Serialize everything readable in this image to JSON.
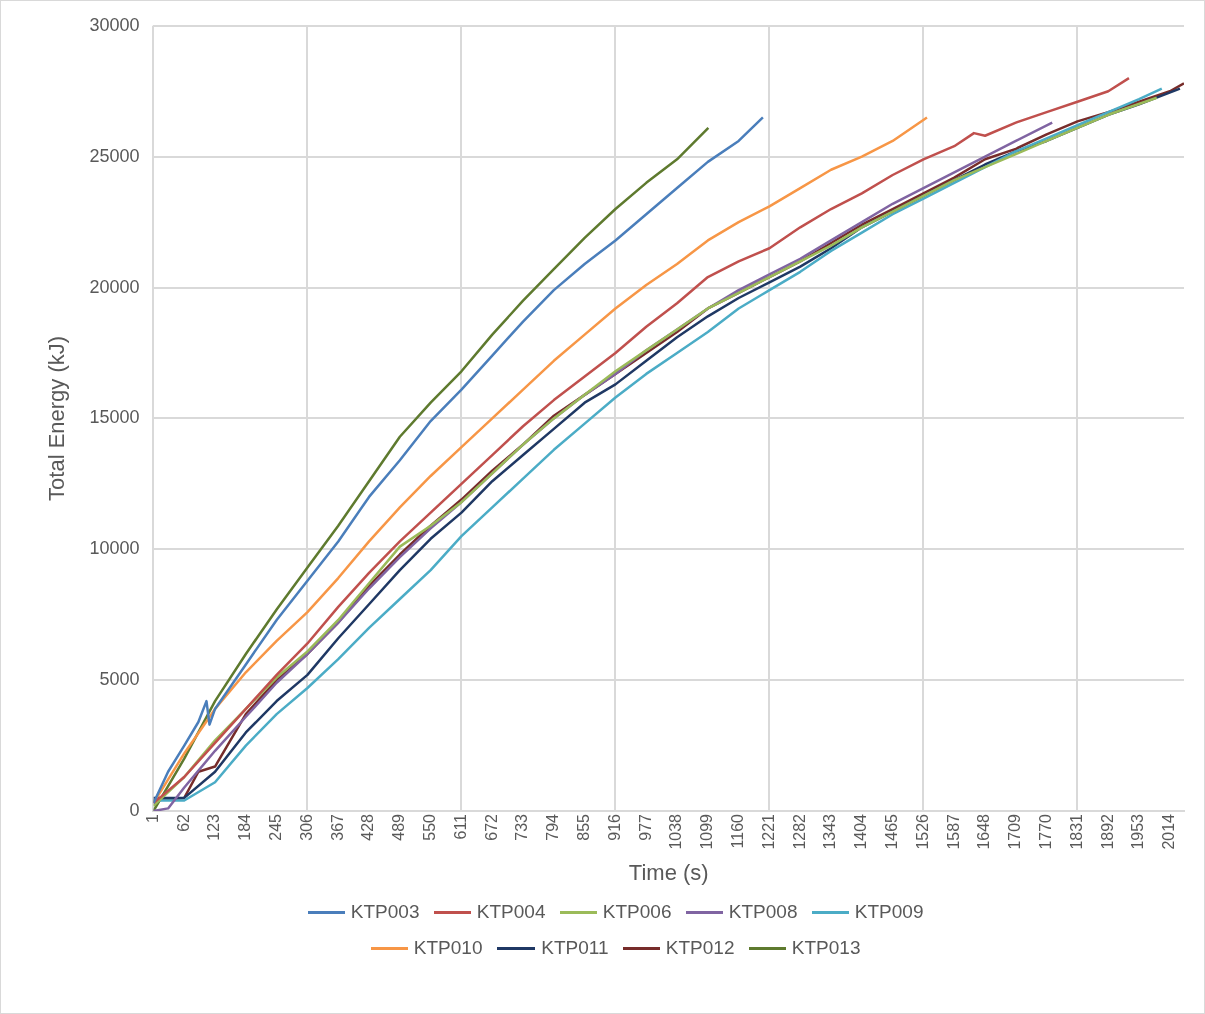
{
  "chart_data": {
    "type": "line",
    "xlabel": "Time (s)",
    "ylabel": "Total Energy (kJ)",
    "xlim": [
      1,
      2042
    ],
    "ylim": [
      0,
      30000
    ],
    "xticks": [
      1,
      62,
      123,
      184,
      245,
      306,
      367,
      428,
      489,
      550,
      611,
      672,
      733,
      794,
      855,
      916,
      977,
      1038,
      1099,
      1160,
      1221,
      1282,
      1343,
      1404,
      1465,
      1526,
      1587,
      1648,
      1709,
      1770,
      1831,
      1892,
      1953,
      2014
    ],
    "yticks": [
      0,
      5000,
      10000,
      15000,
      20000,
      25000,
      30000
    ],
    "grid": true,
    "legend": "bottom",
    "marker": "none",
    "line_style": "solid",
    "series": [
      {
        "name": "KTP003",
        "color": "#4a7ebb",
        "x": [
          1,
          30,
          62,
          90,
          106,
          112,
          123,
          184,
          245,
          306,
          367,
          428,
          489,
          550,
          611,
          672,
          733,
          794,
          855,
          916,
          977,
          1038,
          1099,
          1160,
          1208
        ],
        "values": [
          300,
          1500,
          2500,
          3400,
          4200,
          3300,
          3900,
          5600,
          7300,
          8800,
          10300,
          12000,
          13400,
          14900,
          16100,
          17400,
          18700,
          19900,
          20900,
          21800,
          22800,
          23800,
          24800,
          25600,
          26500
        ]
      },
      {
        "name": "KTP004",
        "color": "#c0504d",
        "x": [
          1,
          62,
          123,
          184,
          245,
          306,
          367,
          428,
          489,
          550,
          611,
          672,
          733,
          794,
          855,
          916,
          977,
          1038,
          1099,
          1160,
          1221,
          1282,
          1343,
          1404,
          1465,
          1526,
          1587,
          1626,
          1648,
          1709,
          1770,
          1831,
          1892,
          1933
        ],
        "values": [
          300,
          1300,
          2600,
          3900,
          5200,
          6400,
          7800,
          9100,
          10300,
          11400,
          12500,
          13600,
          14700,
          15700,
          16600,
          17500,
          18500,
          19400,
          20400,
          21000,
          21500,
          22300,
          23000,
          23600,
          24300,
          24900,
          25400,
          25900,
          25800,
          26300,
          26700,
          27100,
          27500,
          28000
        ]
      },
      {
        "name": "KTP006",
        "color": "#9bbb59",
        "x": [
          1,
          62,
          123,
          184,
          245,
          306,
          367,
          428,
          489,
          550,
          611,
          672,
          733,
          794,
          855,
          916,
          977,
          1038,
          1099,
          1160,
          1221,
          1282,
          1343,
          1404,
          1465,
          1526,
          1587,
          1648,
          1709,
          1770,
          1831,
          1892,
          1988
        ],
        "values": [
          200,
          1300,
          2700,
          3900,
          5100,
          6100,
          7300,
          8700,
          10100,
          10900,
          11800,
          12900,
          14000,
          15000,
          15900,
          16800,
          17600,
          18400,
          19200,
          19800,
          20400,
          21000,
          21600,
          22300,
          22900,
          23500,
          24100,
          24600,
          25100,
          25600,
          26100,
          26600,
          27250
        ]
      },
      {
        "name": "KTP008",
        "color": "#8064a2",
        "x": [
          1,
          30,
          62,
          123,
          184,
          245,
          306,
          367,
          428,
          489,
          550,
          611,
          672,
          733,
          794,
          855,
          916,
          977,
          1038,
          1099,
          1160,
          1221,
          1282,
          1343,
          1404,
          1465,
          1526,
          1587,
          1648,
          1709,
          1781
        ],
        "values": [
          0,
          100,
          900,
          2300,
          3600,
          4900,
          6000,
          7200,
          8500,
          9700,
          10800,
          11800,
          12900,
          14000,
          15000,
          15900,
          16700,
          17600,
          18400,
          19200,
          19900,
          20500,
          21100,
          21800,
          22500,
          23200,
          23800,
          24400,
          25000,
          25600,
          26300
        ]
      },
      {
        "name": "KTP009",
        "color": "#4bacc6",
        "x": [
          1,
          62,
          123,
          184,
          245,
          306,
          367,
          428,
          489,
          550,
          611,
          672,
          733,
          794,
          855,
          916,
          977,
          1038,
          1099,
          1160,
          1221,
          1282,
          1343,
          1404,
          1465,
          1526,
          1587,
          1648,
          1709,
          1770,
          1831,
          1892,
          1953,
          1998
        ],
        "values": [
          400,
          400,
          1100,
          2500,
          3700,
          4700,
          5800,
          7000,
          8100,
          9200,
          10500,
          11600,
          12700,
          13800,
          14800,
          15800,
          16700,
          17500,
          18300,
          19200,
          19900,
          20600,
          21400,
          22100,
          22800,
          23400,
          24000,
          24600,
          25200,
          25700,
          26200,
          26700,
          27200,
          27600
        ]
      },
      {
        "name": "KTP010",
        "color": "#f79646",
        "x": [
          1,
          62,
          123,
          184,
          245,
          306,
          367,
          428,
          489,
          550,
          611,
          672,
          733,
          794,
          855,
          916,
          977,
          1038,
          1099,
          1160,
          1221,
          1282,
          1343,
          1404,
          1465,
          1533
        ],
        "values": [
          300,
          2200,
          3900,
          5300,
          6500,
          7600,
          8900,
          10300,
          11600,
          12800,
          13900,
          15000,
          16100,
          17200,
          18200,
          19200,
          20100,
          20900,
          21800,
          22500,
          23100,
          23800,
          24500,
          25000,
          25600,
          26500
        ]
      },
      {
        "name": "KTP011",
        "color": "#1f3864",
        "x": [
          1,
          62,
          123,
          184,
          245,
          306,
          367,
          428,
          489,
          550,
          611,
          672,
          733,
          794,
          855,
          916,
          977,
          1038,
          1099,
          1160,
          1221,
          1282,
          1343,
          1404,
          1465,
          1526,
          1587,
          1648,
          1709,
          1770,
          1831,
          1892,
          1953,
          2034
        ],
        "values": [
          500,
          500,
          1500,
          3000,
          4200,
          5200,
          6600,
          7900,
          9200,
          10400,
          11400,
          12600,
          13600,
          14600,
          15600,
          16300,
          17200,
          18100,
          18900,
          19600,
          20200,
          20800,
          21500,
          22300,
          22900,
          23500,
          24100,
          24700,
          25200,
          25600,
          26100,
          26600,
          27000,
          27600
        ]
      },
      {
        "name": "KTP012",
        "color": "#772c2a",
        "x": [
          1,
          62,
          90,
          123,
          184,
          245,
          306,
          367,
          428,
          489,
          550,
          611,
          672,
          733,
          794,
          855,
          916,
          977,
          1038,
          1099,
          1160,
          1221,
          1282,
          1343,
          1404,
          1465,
          1526,
          1587,
          1648,
          1709,
          1770,
          1831,
          1892,
          1953,
          2014,
          2042
        ],
        "values": [
          400,
          500,
          1500,
          1700,
          3700,
          5000,
          6000,
          7200,
          8600,
          9800,
          10900,
          11900,
          13000,
          14000,
          15100,
          15900,
          16700,
          17500,
          18300,
          19200,
          19800,
          20400,
          21000,
          21700,
          22400,
          23000,
          23600,
          24200,
          24900,
          25300,
          25850,
          26350,
          26700,
          27100,
          27500,
          27800
        ]
      },
      {
        "name": "KTP013",
        "color": "#5e7a2e",
        "x": [
          1,
          62,
          123,
          184,
          245,
          306,
          367,
          428,
          489,
          550,
          611,
          672,
          733,
          794,
          855,
          916,
          977,
          1038,
          1100
        ],
        "values": [
          0,
          2000,
          4200,
          6000,
          7700,
          9300,
          10900,
          12600,
          14300,
          15600,
          16800,
          18200,
          19500,
          20700,
          21900,
          23000,
          24000,
          24900,
          26100
        ]
      }
    ]
  }
}
